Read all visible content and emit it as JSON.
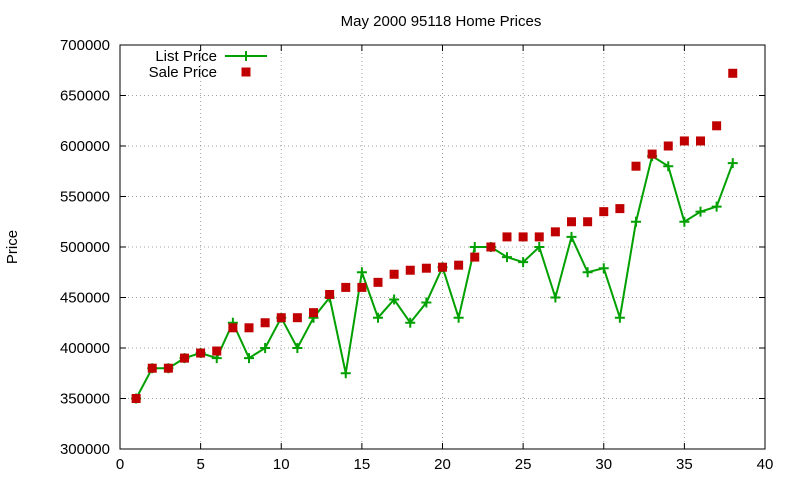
{
  "chart_data": {
    "type": "line",
    "title": "May 2000 95118 Home Prices",
    "xlabel": "",
    "ylabel": "Price",
    "xlim": [
      0,
      40
    ],
    "ylim": [
      300000,
      700000
    ],
    "xticks": [
      0,
      5,
      10,
      15,
      20,
      25,
      30,
      35,
      40
    ],
    "yticks": [
      300000,
      350000,
      400000,
      450000,
      500000,
      550000,
      600000,
      650000,
      700000
    ],
    "grid": true,
    "legend_position": "top-left",
    "series": [
      {
        "name": "List Price",
        "style": "linespoints",
        "marker": "plus",
        "color": "#00a000",
        "x": [
          1,
          2,
          3,
          4,
          5,
          6,
          7,
          8,
          9,
          10,
          11,
          12,
          13,
          14,
          15,
          16,
          17,
          18,
          19,
          20,
          21,
          22,
          23,
          24,
          25,
          26,
          27,
          28,
          29,
          30,
          31,
          32,
          33,
          34,
          35,
          36,
          37,
          38
        ],
        "values": [
          350000,
          380000,
          380000,
          390000,
          395000,
          390000,
          425000,
          390000,
          400000,
          430000,
          400000,
          430000,
          450000,
          375000,
          475000,
          430000,
          448000,
          425000,
          445000,
          480000,
          430000,
          500000,
          500000,
          490000,
          485000,
          500000,
          450000,
          510000,
          475000,
          479000,
          430000,
          525000,
          590000,
          580000,
          525000,
          535000,
          540000,
          583000
        ]
      },
      {
        "name": "Sale Price",
        "style": "points",
        "marker": "square",
        "color": "#c00000",
        "x": [
          1,
          2,
          3,
          4,
          5,
          6,
          7,
          8,
          9,
          10,
          11,
          12,
          13,
          14,
          15,
          16,
          17,
          18,
          19,
          20,
          21,
          22,
          23,
          24,
          25,
          26,
          27,
          28,
          29,
          30,
          31,
          32,
          33,
          34,
          35,
          36,
          37,
          38
        ],
        "values": [
          350000,
          380000,
          380000,
          390000,
          395000,
          397000,
          420000,
          420000,
          425000,
          430000,
          430000,
          435000,
          453000,
          460000,
          460000,
          465000,
          473000,
          477000,
          479000,
          480000,
          482000,
          490000,
          500000,
          510000,
          510000,
          510000,
          515000,
          525000,
          525000,
          535000,
          538000,
          580000,
          592000,
          600000,
          605000,
          605000,
          620000,
          672000
        ]
      }
    ]
  }
}
